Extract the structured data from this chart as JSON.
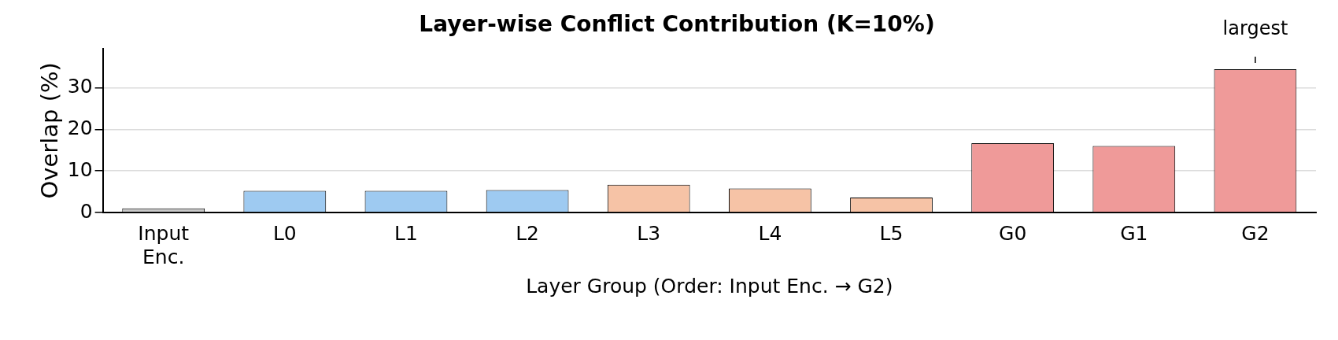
{
  "chart_data": {
    "type": "bar",
    "title": "Layer-wise Conflict Contribution (K=10%)",
    "xlabel": "Layer Group (Order: Input Enc. → G2)",
    "ylabel": "Overlap (%)",
    "categories": [
      "Input Enc.",
      "L0",
      "L1",
      "L2",
      "L3",
      "L4",
      "L5",
      "G0",
      "G1",
      "G2"
    ],
    "values": [
      1.0,
      5.2,
      5.2,
      5.4,
      6.7,
      5.8,
      3.6,
      16.7,
      16.0,
      34.5
    ],
    "colors": [
      "#c8c8c8",
      "#9ecaf1",
      "#9ecaf1",
      "#9ecaf1",
      "#f6c3a6",
      "#f6c3a6",
      "#f6c3a6",
      "#ef9a99",
      "#ef9a99",
      "#ef9a99"
    ],
    "ylim": [
      0,
      39.5
    ],
    "yticks": [
      0,
      10,
      20,
      30
    ],
    "grid": "y",
    "annotations": [
      {
        "text": "largest",
        "x": "G2",
        "y": 34.5
      }
    ]
  }
}
